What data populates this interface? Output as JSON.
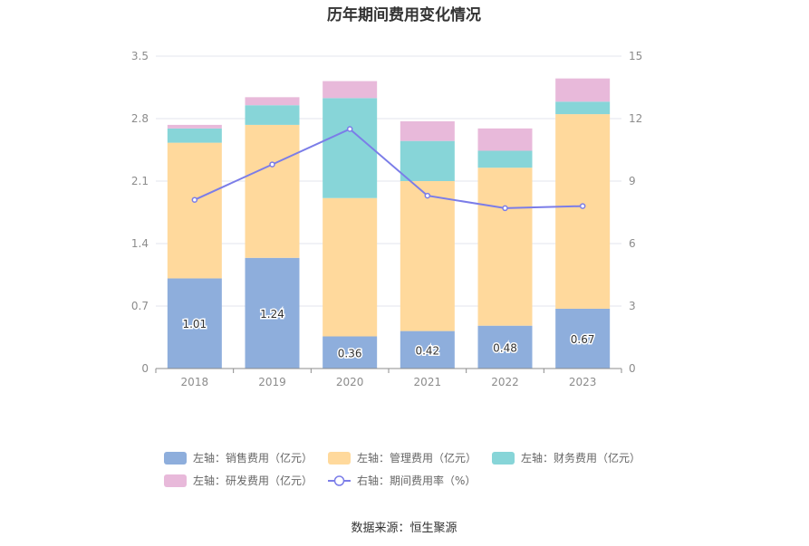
{
  "chart_data": {
    "type": "bar",
    "title": "历年期间费用变化情况",
    "categories": [
      "2018",
      "2019",
      "2020",
      "2021",
      "2022",
      "2023"
    ],
    "series": [
      {
        "name": "左轴：销售费用（亿元）",
        "axis": "left",
        "color": "#8eaedc",
        "values": [
          1.01,
          1.24,
          0.36,
          0.42,
          0.48,
          0.67
        ],
        "show_labels": true
      },
      {
        "name": "左轴：管理费用（亿元）",
        "axis": "left",
        "color": "#ffd99c",
        "values": [
          1.52,
          1.49,
          1.55,
          1.68,
          1.77,
          2.18
        ],
        "show_labels": false
      },
      {
        "name": "左轴：财务费用（亿元）",
        "axis": "left",
        "color": "#87d5d8",
        "values": [
          0.16,
          0.22,
          1.12,
          0.45,
          0.19,
          0.14
        ],
        "show_labels": false
      },
      {
        "name": "左轴：研发费用（亿元）",
        "axis": "left",
        "color": "#e8b9da",
        "values": [
          0.04,
          0.09,
          0.19,
          0.22,
          0.25,
          0.26
        ],
        "show_labels": false
      }
    ],
    "line_series": {
      "name": "右轴：期间费用率（%）",
      "axis": "right",
      "color": "#7b7de8",
      "values": [
        8.1,
        9.8,
        11.5,
        8.3,
        7.7,
        7.8
      ]
    },
    "y_left": {
      "min": 0,
      "max": 3.5,
      "ticks": [
        "0",
        "0.7",
        "1.4",
        "2.1",
        "2.8",
        "3.5"
      ]
    },
    "y_right": {
      "min": 0,
      "max": 15,
      "ticks": [
        "0",
        "3",
        "6",
        "9",
        "12",
        "15"
      ]
    },
    "legend_position": "bottom",
    "grid": true
  },
  "source": "数据来源：恒生聚源"
}
